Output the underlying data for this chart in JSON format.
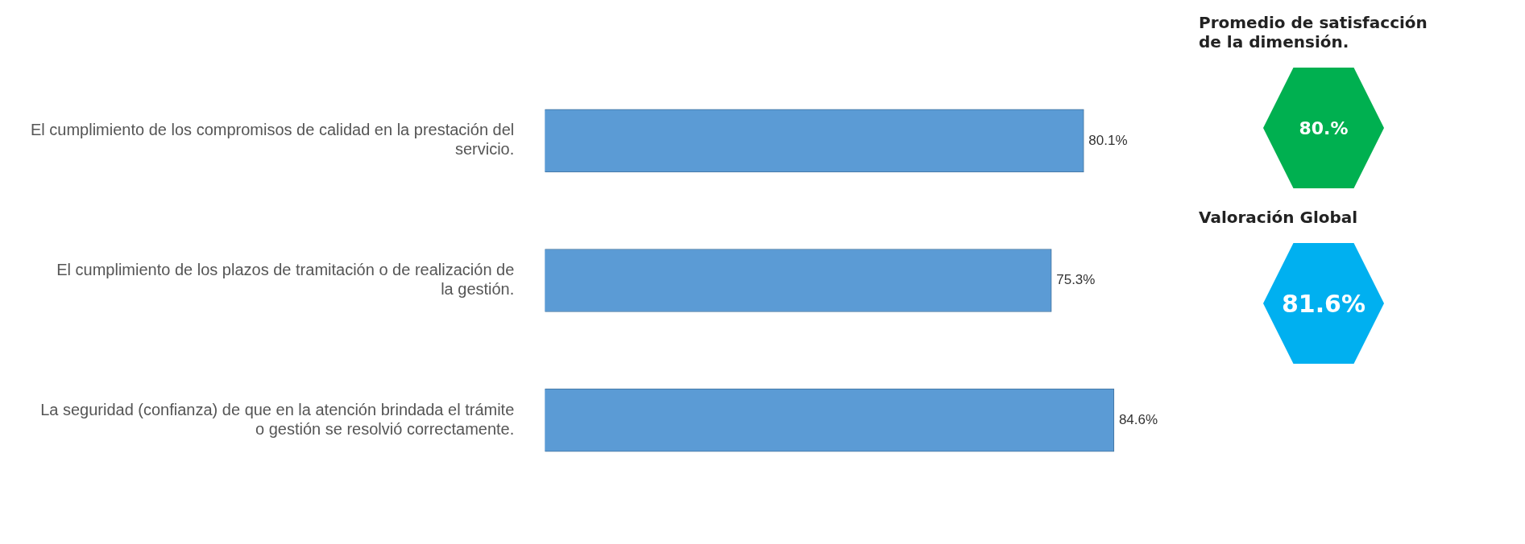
{
  "chart_data": [
    {
      "type": "bar",
      "orientation": "horizontal",
      "categories": [
        "El cumplimiento de los compromisos de calidad en la prestación del servicio.",
        "El cumplimiento de los plazos de tramitación o de realización de la gestión.",
        "La seguridad (confianza) de que en la atención brindada el trámite o gestión se resolvió correctamente."
      ],
      "values": [
        80.1,
        75.3,
        84.6
      ],
      "value_labels": [
        "80.1%",
        "75.3%",
        "84.6%"
      ],
      "color": "#5b9bd5",
      "legend": false
    },
    {
      "type": "other",
      "annotations": [
        "Promedio de satisfacción de la dimensión.",
        "80.%",
        "Valoración Global",
        "81.6%"
      ],
      "colors": [
        "#00b050",
        "#00b0f0"
      ]
    }
  ]
}
